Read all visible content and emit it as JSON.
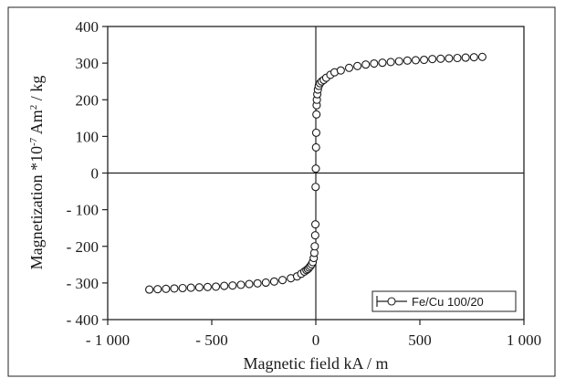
{
  "chart_data": {
    "type": "scatter",
    "xlabel": "Magnetic field kA / m",
    "ylabel_main": "Magnetization *10",
    "ylabel_exp": "-7",
    "ylabel_mid": " Am",
    "ylabel_sup": "2",
    "ylabel_end": " / kg",
    "xlim": [
      -1000,
      1000
    ],
    "ylim": [
      -400,
      400
    ],
    "x_ticks": [
      -1000,
      -500,
      0,
      500,
      1000
    ],
    "x_tick_labels": [
      "- 1 000",
      "- 500",
      "0",
      "500",
      "1 000"
    ],
    "y_ticks": [
      400,
      300,
      200,
      100,
      0,
      -100,
      -200,
      -300,
      -400
    ],
    "y_tick_labels": [
      "400",
      "300",
      "200",
      "100",
      "0",
      "- 100",
      "- 200",
      "- 300",
      "- 400"
    ],
    "grid": false,
    "zero_lines": true,
    "legend_position": "bottom-right",
    "series": [
      {
        "name": "Fe/Cu 100/20",
        "marker": "open-circle",
        "color": "#1a1a1a",
        "points": [
          [
            -800,
            -318
          ],
          [
            -760,
            -317
          ],
          [
            -720,
            -316
          ],
          [
            -680,
            -315
          ],
          [
            -640,
            -314
          ],
          [
            -600,
            -313
          ],
          [
            -560,
            -312
          ],
          [
            -520,
            -311
          ],
          [
            -480,
            -310
          ],
          [
            -440,
            -308
          ],
          [
            -400,
            -307
          ],
          [
            -360,
            -305
          ],
          [
            -320,
            -303
          ],
          [
            -280,
            -301
          ],
          [
            -240,
            -299
          ],
          [
            -200,
            -296
          ],
          [
            -160,
            -292
          ],
          [
            -120,
            -287
          ],
          [
            -90,
            -282
          ],
          [
            -70,
            -275
          ],
          [
            -55,
            -269
          ],
          [
            -45,
            -265
          ],
          [
            -38,
            -262
          ],
          [
            -32,
            -258
          ],
          [
            -26,
            -254
          ],
          [
            -20,
            -249
          ],
          [
            -15,
            -243
          ],
          [
            -10,
            -232
          ],
          [
            -7,
            -218
          ],
          [
            -5,
            -200
          ],
          [
            -3,
            -170
          ],
          [
            -2,
            -140
          ],
          [
            -1,
            -38
          ],
          [
            0,
            12
          ],
          [
            1,
            70
          ],
          [
            2,
            110
          ],
          [
            3,
            160
          ],
          [
            4,
            185
          ],
          [
            5,
            200
          ],
          [
            7,
            215
          ],
          [
            10,
            228
          ],
          [
            14,
            238
          ],
          [
            20,
            245
          ],
          [
            28,
            250
          ],
          [
            38,
            254
          ],
          [
            50,
            260
          ],
          [
            70,
            268
          ],
          [
            90,
            275
          ],
          [
            120,
            280
          ],
          [
            160,
            287
          ],
          [
            200,
            292
          ],
          [
            240,
            296
          ],
          [
            280,
            299
          ],
          [
            320,
            301
          ],
          [
            360,
            303
          ],
          [
            400,
            305
          ],
          [
            440,
            307
          ],
          [
            480,
            308
          ],
          [
            520,
            309
          ],
          [
            560,
            311
          ],
          [
            600,
            312
          ],
          [
            640,
            313
          ],
          [
            680,
            314
          ],
          [
            720,
            315
          ],
          [
            760,
            316
          ],
          [
            800,
            317
          ]
        ]
      }
    ]
  }
}
